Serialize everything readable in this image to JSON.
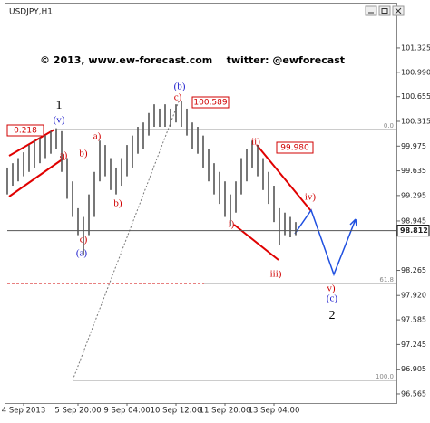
{
  "chart_data": {
    "type": "ohlc",
    "title": "USDJPY,H1",
    "subtitle": "© 2013, www.ew-forecast.com    twitter: @ewforecast",
    "color": "#555555",
    "categories": [
      null,
      null,
      null,
      "4 Sep 2013",
      null,
      null,
      null,
      null,
      null,
      null,
      null,
      null,
      null,
      "5 Sep 20:00",
      null,
      null,
      null,
      null,
      null,
      null,
      null,
      null,
      "9 Sep 04:00",
      null,
      null,
      null,
      null,
      null,
      null,
      null,
      null,
      "10 Sep 12:00",
      null,
      null,
      null,
      null,
      null,
      null,
      null,
      null,
      "11 Sep 20:00",
      null,
      null,
      null,
      null,
      null,
      null,
      null,
      null,
      "13 Sep 04:00",
      null,
      null,
      null,
      null
    ],
    "high": [
      99.68,
      99.74,
      99.81,
      99.89,
      99.99,
      100.05,
      100.09,
      100.12,
      100.18,
      100.22,
      100.18,
      99.81,
      99.49,
      99.12,
      99.0,
      99.31,
      99.62,
      100.05,
      99.99,
      99.81,
      99.68,
      99.81,
      99.99,
      100.12,
      100.24,
      100.3,
      100.43,
      100.55,
      100.49,
      100.55,
      100.49,
      100.55,
      100.59,
      100.49,
      100.3,
      100.24,
      100.12,
      99.93,
      99.74,
      99.62,
      99.49,
      99.31,
      99.49,
      99.81,
      99.93,
      100.05,
      99.99,
      99.81,
      99.62,
      99.43,
      99.12,
      99.06,
      99.0,
      98.93
    ],
    "low": [
      99.31,
      99.43,
      99.49,
      99.56,
      99.62,
      99.68,
      99.74,
      99.81,
      99.87,
      99.93,
      99.62,
      99.25,
      99.0,
      98.75,
      98.47,
      98.75,
      99.0,
      99.49,
      99.56,
      99.37,
      99.31,
      99.43,
      99.56,
      99.68,
      99.87,
      99.93,
      100.12,
      100.24,
      100.24,
      100.24,
      100.24,
      100.3,
      100.24,
      100.12,
      99.93,
      99.87,
      99.68,
      99.49,
      99.31,
      99.18,
      99.0,
      98.87,
      99.06,
      99.31,
      99.49,
      99.68,
      99.56,
      99.37,
      99.18,
      98.93,
      98.62,
      98.75,
      98.72,
      98.75
    ],
    "last_price": 98.812,
    "ylim": [
      96.44,
      101.86
    ],
    "yticks": [
      101.325,
      {
        "value": 100.99,
        "label": "100.990"
      },
      100.655,
      100.315,
      99.975,
      99.635,
      99.295,
      98.945,
      98.265,
      {
        "value": 97.92,
        "label": "97.920"
      },
      97.585,
      97.245,
      96.905,
      96.565
    ],
    "annotations": [
      {
        "text": "1",
        "color": "#000000"
      },
      {
        "text": "(v)",
        "color": "#1a1acc"
      },
      {
        "text": "0.218",
        "color": "#d00000"
      },
      {
        "text": "a)",
        "color": "#d00000"
      },
      {
        "text": "b)",
        "color": "#d00000"
      },
      {
        "text": "c)",
        "color": "#d00000"
      },
      {
        "text": "(a)",
        "color": "#1a1acc"
      },
      {
        "text": "a)",
        "color": "#d00000"
      },
      {
        "text": "b)",
        "color": "#d00000"
      },
      {
        "text": "(b)",
        "color": "#1a1acc"
      },
      {
        "text": "c)",
        "color": "#d00000"
      },
      {
        "text": "100.589",
        "color": "#d00000"
      },
      {
        "text": "ii)",
        "color": "#d00000"
      },
      {
        "text": "99.980",
        "color": "#d00000"
      },
      {
        "text": "iv)",
        "color": "#d00000"
      },
      {
        "text": "i)",
        "color": "#d00000"
      },
      {
        "text": "iii)",
        "color": "#d00000"
      },
      {
        "text": "v)",
        "color": "#d00000"
      },
      {
        "text": "(c)",
        "color": "#1a1acc"
      },
      {
        "text": "2",
        "color": "#000000"
      },
      {
        "text": "0.0",
        "color": "#888888"
      },
      {
        "text": "61.8",
        "color": "#888888"
      },
      {
        "text": "100.0",
        "color": "#888888"
      }
    ]
  }
}
